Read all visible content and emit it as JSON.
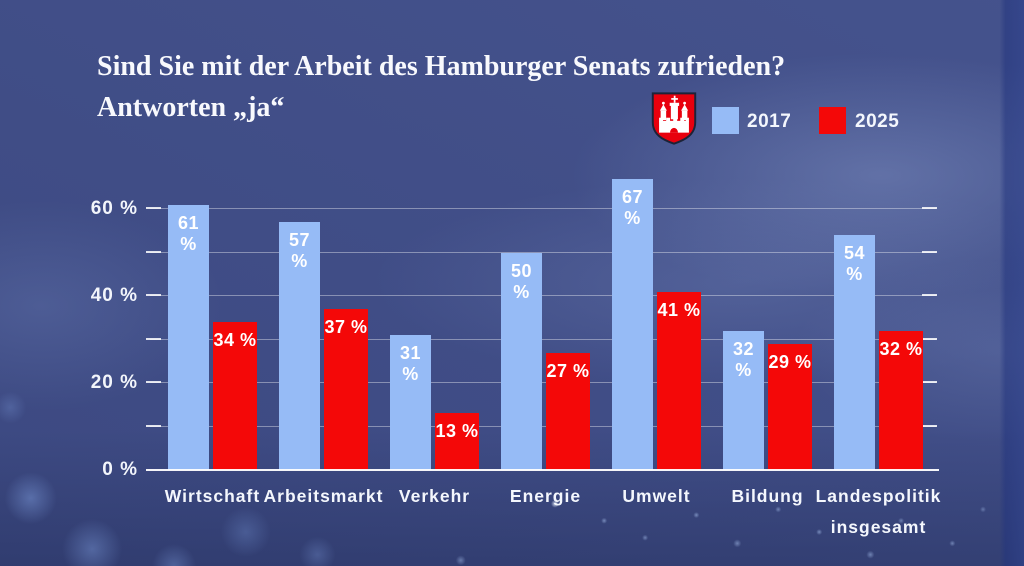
{
  "title": {
    "line1": "Sind Sie mit der Arbeit des Hamburger Senats zufrieden?",
    "line2": "Antworten „ja“"
  },
  "icons": {
    "crest": "hamburg-coat-of-arms",
    "crest_colors": {
      "shield": "#e8000d",
      "castle": "#ffffff",
      "outline": "#1c2338"
    }
  },
  "colors": {
    "background": "#43508b",
    "series_2017": "#96bbf6",
    "series_2025": "#f40808",
    "text": "#ffffff"
  },
  "axis": {
    "yticks": [
      {
        "value": 0,
        "label": "0 %"
      },
      {
        "value": 20,
        "label": "20 %"
      },
      {
        "value": 40,
        "label": "40 %"
      },
      {
        "value": 60,
        "label": "60 %"
      }
    ],
    "gridline_values": [
      10,
      20,
      30,
      40,
      50,
      60
    ]
  },
  "chart_data": {
    "type": "bar",
    "title": "Sind Sie mit der Arbeit des Hamburger Senats zufrieden? Antworten „ja“",
    "categories": [
      "Wirtschaft",
      "Arbeitsmarkt",
      "Verkehr",
      "Energie",
      "Umwelt",
      "Bildung",
      "Landespolitik\ninsgesamt"
    ],
    "series": [
      {
        "name": "2017",
        "color": "#96bbf6",
        "values": [
          61,
          57,
          31,
          50,
          67,
          32,
          54
        ]
      },
      {
        "name": "2025",
        "color": "#f40808",
        "values": [
          34,
          37,
          13,
          27,
          41,
          29,
          32
        ]
      }
    ],
    "unit": "%",
    "value_label_suffix": " %",
    "ylim": [
      0,
      70
    ],
    "gridline_step": 10,
    "grid": true,
    "legend_position": "top-right"
  }
}
